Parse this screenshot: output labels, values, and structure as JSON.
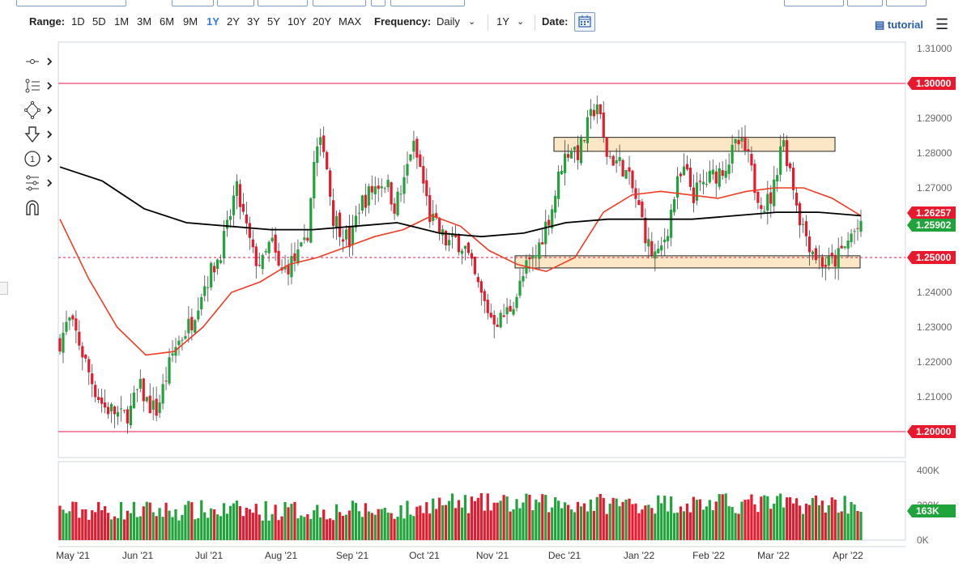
{
  "toolbar": {
    "range_label": "Range:",
    "ranges": [
      "1D",
      "5D",
      "1M",
      "3M",
      "6M",
      "9M",
      "1Y",
      "2Y",
      "3Y",
      "5Y",
      "10Y",
      "20Y",
      "MAX"
    ],
    "active_range": "1Y",
    "frequency_label": "Frequency:",
    "frequency_value": "Daily",
    "period_value": "1Y",
    "date_label": "Date:",
    "tutorial_label": "tutorial"
  },
  "tools": [
    "crosshair-tool-icon",
    "fib-levels-tool-icon",
    "shapes-tool-icon",
    "arrow-tool-icon",
    "annotation-number-tool-icon",
    "indicators-tool-icon",
    "magnet-tool-icon"
  ],
  "chart_data": {
    "type": "candlestick",
    "title": "",
    "x_labels": [
      "May '21",
      "Jun '21",
      "Jul '21",
      "Aug '21",
      "Sep '21",
      "Oct '21",
      "Nov '21",
      "Dec '21",
      "Jan '22",
      "Feb '22",
      "Mar '22",
      "Apr '22"
    ],
    "y_ticks": [
      "1.31000",
      "1.30000",
      "1.29000",
      "1.28000",
      "1.27000",
      "1.26000",
      "1.25000",
      "1.24000",
      "1.23000",
      "1.22000",
      "1.21000",
      "1.20000"
    ],
    "ylim": [
      1.2,
      1.31
    ],
    "close_path": [
      1.226,
      1.232,
      1.227,
      1.219,
      1.212,
      1.207,
      1.206,
      1.204,
      1.206,
      1.213,
      1.208,
      1.206,
      1.215,
      1.224,
      1.228,
      1.232,
      1.24,
      1.245,
      1.25,
      1.258,
      1.27,
      1.26,
      1.25,
      1.248,
      1.255,
      1.245,
      1.248,
      1.25,
      1.254,
      1.28,
      1.283,
      1.262,
      1.258,
      1.254,
      1.265,
      1.268,
      1.271,
      1.272,
      1.265,
      1.27,
      1.283,
      1.275,
      1.262,
      1.258,
      1.254,
      1.255,
      1.253,
      1.245,
      1.238,
      1.233,
      1.232,
      1.235,
      1.24,
      1.247,
      1.25,
      1.258,
      1.265,
      1.277,
      1.282,
      1.28,
      1.288,
      1.295,
      1.28,
      1.278,
      1.276,
      1.27,
      1.262,
      1.252,
      1.25,
      1.258,
      1.27,
      1.275,
      1.268,
      1.271,
      1.273,
      1.275,
      1.278,
      1.283,
      1.28,
      1.27,
      1.265,
      1.268,
      1.285,
      1.275,
      1.262,
      1.255,
      1.25,
      1.248,
      1.249,
      1.252,
      1.257,
      1.259
    ],
    "ma50_path": [
      1.261,
      1.244,
      1.23,
      1.222,
      1.223,
      1.23,
      1.24,
      1.243,
      1.248,
      1.25,
      1.253,
      1.256,
      1.258,
      1.262,
      1.259,
      1.252,
      1.248,
      1.246,
      1.25,
      1.263,
      1.268,
      1.269,
      1.268,
      1.267,
      1.269,
      1.27,
      1.27,
      1.267,
      1.262
    ],
    "ma200_path": [
      1.276,
      1.272,
      1.264,
      1.26,
      1.259,
      1.258,
      1.258,
      1.259,
      1.26,
      1.257,
      1.256,
      1.257,
      1.26,
      1.261,
      1.261,
      1.261,
      1.262,
      1.263,
      1.263,
      1.262
    ],
    "horizontal_lines": [
      {
        "value": 1.3,
        "style": "solid",
        "label": "1.30000"
      },
      {
        "value": 1.2,
        "style": "solid",
        "label": "1.20000"
      },
      {
        "value": 1.25,
        "style": "dashed",
        "label": "1.25000"
      }
    ],
    "zones": [
      {
        "from": 1.2805,
        "to": 1.2845,
        "start": "Nov 25 '21",
        "end": "Mar 17 '22"
      },
      {
        "from": 1.247,
        "to": 1.2505,
        "start": "Oct 29 '21",
        "end": "Apr '22"
      }
    ],
    "price_markers": [
      {
        "value": 1.26257,
        "label": "1.26257",
        "color": "#e8192c"
      },
      {
        "value": 1.25902,
        "label": "1.25902",
        "color": "#1fa33a"
      },
      {
        "value": 1.25,
        "label": "1.25000",
        "color": "#e8192c"
      },
      {
        "value": 1.3,
        "label": "1.30000",
        "color": "#e8192c"
      },
      {
        "value": 1.2,
        "label": "1.20000",
        "color": "#e8192c"
      }
    ],
    "volume": {
      "ticks": [
        "400K",
        "200K",
        "0K"
      ],
      "ylim": [
        0,
        400000
      ],
      "last_label": "163K",
      "last_value": 163000
    },
    "colors": {
      "up": "#1fa33a",
      "down": "#e8192c",
      "ma50": "#ef3b24",
      "ma200": "#000000",
      "level": "#e8194f",
      "zone_fill": "#fbe7c6",
      "zone_stroke": "#222222"
    }
  }
}
